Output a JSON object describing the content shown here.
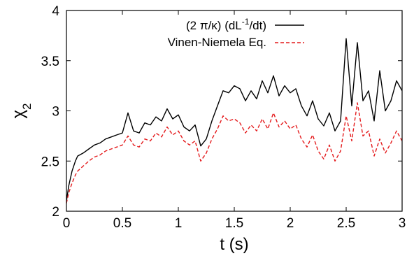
{
  "chart_data": {
    "type": "line",
    "title": "",
    "xlabel": "t (s)",
    "ylabel": "χ2",
    "xlim": [
      0,
      3
    ],
    "ylim": [
      2,
      4
    ],
    "grid": false,
    "legend_position": "top-left",
    "x_ticks": [
      {
        "value": 0,
        "label": "0"
      },
      {
        "value": 0.5,
        "label": "0.5"
      },
      {
        "value": 1,
        "label": "1"
      },
      {
        "value": 1.5,
        "label": "1.5"
      },
      {
        "value": 2,
        "label": "2"
      },
      {
        "value": 2.5,
        "label": "2.5"
      },
      {
        "value": 3,
        "label": "3"
      }
    ],
    "y_ticks": [
      {
        "value": 2,
        "label": "2"
      },
      {
        "value": 2.5,
        "label": "2.5"
      },
      {
        "value": 3,
        "label": "3"
      },
      {
        "value": 3.5,
        "label": "3.5"
      },
      {
        "value": 4,
        "label": "4"
      }
    ],
    "series": [
      {
        "name": "(2 π/κ) (dL⁻¹/dt)",
        "color": "#000000",
        "style": "solid",
        "x": [
          0,
          0.02,
          0.05,
          0.08,
          0.1,
          0.15,
          0.2,
          0.25,
          0.3,
          0.35,
          0.4,
          0.45,
          0.5,
          0.55,
          0.6,
          0.65,
          0.7,
          0.75,
          0.8,
          0.85,
          0.9,
          0.95,
          1.0,
          1.05,
          1.1,
          1.15,
          1.2,
          1.25,
          1.3,
          1.35,
          1.4,
          1.45,
          1.5,
          1.55,
          1.6,
          1.65,
          1.7,
          1.75,
          1.8,
          1.85,
          1.9,
          1.95,
          2.0,
          2.05,
          2.1,
          2.15,
          2.2,
          2.25,
          2.3,
          2.35,
          2.4,
          2.45,
          2.5,
          2.55,
          2.6,
          2.65,
          2.7,
          2.75,
          2.8,
          2.85,
          2.9,
          2.95,
          3.0
        ],
        "y": [
          2.1,
          2.25,
          2.4,
          2.5,
          2.55,
          2.58,
          2.62,
          2.66,
          2.68,
          2.72,
          2.74,
          2.76,
          2.78,
          2.98,
          2.8,
          2.78,
          2.88,
          2.86,
          2.94,
          2.9,
          3.02,
          2.92,
          2.96,
          2.84,
          2.8,
          2.86,
          2.65,
          2.72,
          2.9,
          3.05,
          3.2,
          3.18,
          3.25,
          3.22,
          3.1,
          3.2,
          3.12,
          3.3,
          3.18,
          3.35,
          3.15,
          3.25,
          3.18,
          3.22,
          3.05,
          2.95,
          3.1,
          2.92,
          2.85,
          2.98,
          2.8,
          2.9,
          3.72,
          3.05,
          3.68,
          3.1,
          3.2,
          2.9,
          3.4,
          3.0,
          3.1,
          3.3,
          3.2
        ]
      },
      {
        "name": "Vinen-Niemela Eq.",
        "color": "#e41a1c",
        "style": "dashed",
        "x": [
          0,
          0.02,
          0.05,
          0.08,
          0.1,
          0.15,
          0.2,
          0.25,
          0.3,
          0.35,
          0.4,
          0.45,
          0.5,
          0.55,
          0.6,
          0.65,
          0.7,
          0.75,
          0.8,
          0.85,
          0.9,
          0.95,
          1.0,
          1.05,
          1.1,
          1.15,
          1.2,
          1.25,
          1.3,
          1.35,
          1.4,
          1.45,
          1.5,
          1.55,
          1.6,
          1.65,
          1.7,
          1.75,
          1.8,
          1.85,
          1.9,
          1.95,
          2.0,
          2.05,
          2.1,
          2.15,
          2.2,
          2.25,
          2.3,
          2.35,
          2.4,
          2.45,
          2.5,
          2.55,
          2.6,
          2.65,
          2.7,
          2.75,
          2.8,
          2.85,
          2.9,
          2.95,
          3.0
        ],
        "y": [
          2.08,
          2.18,
          2.28,
          2.36,
          2.4,
          2.45,
          2.5,
          2.54,
          2.56,
          2.6,
          2.62,
          2.64,
          2.66,
          2.75,
          2.66,
          2.64,
          2.72,
          2.7,
          2.78,
          2.74,
          2.84,
          2.76,
          2.8,
          2.7,
          2.66,
          2.7,
          2.5,
          2.58,
          2.72,
          2.82,
          2.95,
          2.9,
          2.92,
          2.88,
          2.78,
          2.86,
          2.8,
          2.92,
          2.82,
          2.98,
          2.84,
          2.9,
          2.82,
          2.86,
          2.72,
          2.64,
          2.76,
          2.6,
          2.52,
          2.66,
          2.5,
          2.6,
          2.95,
          2.7,
          3.08,
          2.75,
          2.8,
          2.55,
          2.72,
          2.58,
          2.68,
          2.8,
          2.7
        ]
      }
    ]
  }
}
